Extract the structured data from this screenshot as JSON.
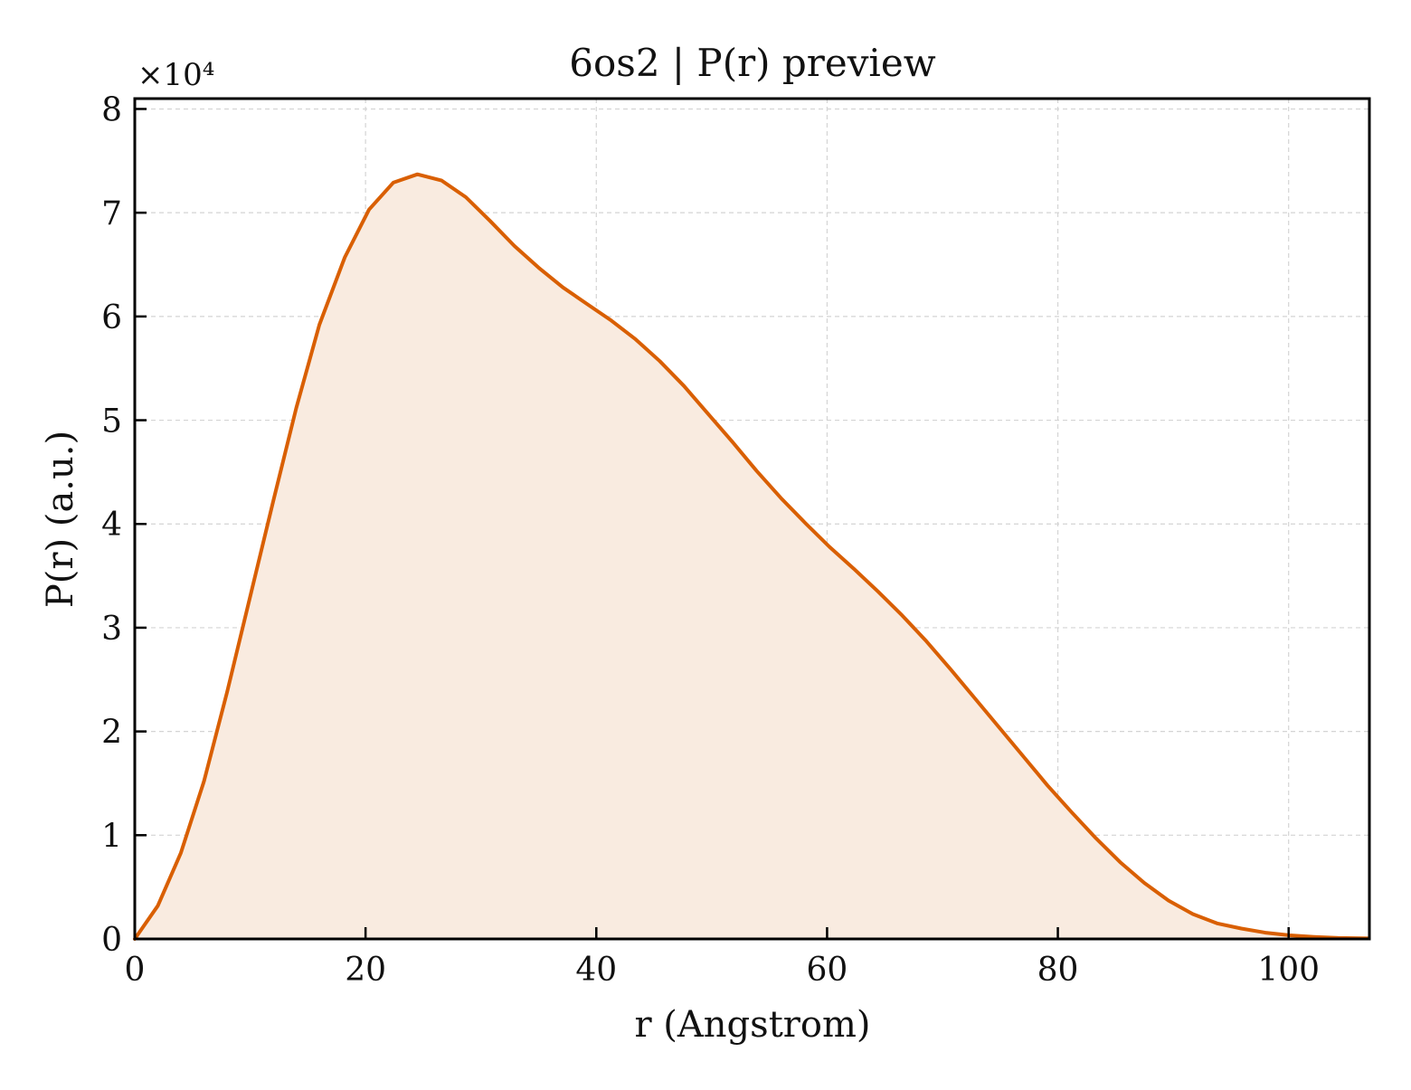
{
  "chart_data": {
    "type": "area",
    "title": "6os2 | P(r) preview",
    "xlabel": "r (Angstrom)",
    "ylabel": "P(r) (a.u.)",
    "y_multiplier_label": "×10⁴",
    "xlim": [
      0,
      107
    ],
    "ylim": [
      0,
      81000
    ],
    "x_ticks": [
      0,
      20,
      40,
      60,
      80,
      100
    ],
    "x_tick_labels": [
      "0",
      "20",
      "40",
      "60",
      "80",
      "100"
    ],
    "y_ticks": [
      0,
      10000,
      20000,
      30000,
      40000,
      50000,
      60000,
      70000,
      80000
    ],
    "y_tick_labels": [
      "0",
      "1",
      "2",
      "3",
      "4",
      "5",
      "6",
      "7",
      "8"
    ],
    "grid": true,
    "legend": "none",
    "colors": {
      "line": "#d95f02",
      "fill": "#f9ebe0"
    },
    "x": [
      0,
      2,
      4,
      6,
      8,
      10,
      12,
      14,
      16,
      18.2,
      20.3,
      22.4,
      24.5,
      26.6,
      28.7,
      30.8,
      32.9,
      35,
      37.1,
      39.2,
      41.3,
      43.4,
      45.5,
      47.6,
      49.7,
      51.8,
      53.9,
      56,
      58.1,
      60.2,
      62.3,
      64.4,
      66.5,
      68.6,
      70.7,
      72.8,
      74.9,
      77,
      79.1,
      81.2,
      83.3,
      85.4,
      87.5,
      89.6,
      91.7,
      93.8,
      95.9,
      98,
      100.1,
      102.2,
      104.3,
      106.9
    ],
    "y": [
      0,
      3200,
      8300,
      15200,
      23800,
      33000,
      42200,
      51200,
      59200,
      65700,
      70300,
      72900,
      73700,
      73100,
      71500,
      69200,
      66800,
      64700,
      62800,
      61200,
      59600,
      57800,
      55700,
      53300,
      50600,
      47900,
      45100,
      42500,
      40100,
      37800,
      35700,
      33500,
      31200,
      28700,
      26000,
      23200,
      20400,
      17600,
      14800,
      12200,
      9700,
      7400,
      5400,
      3700,
      2400,
      1500,
      1000,
      600,
      350,
      200,
      100,
      50
    ]
  }
}
